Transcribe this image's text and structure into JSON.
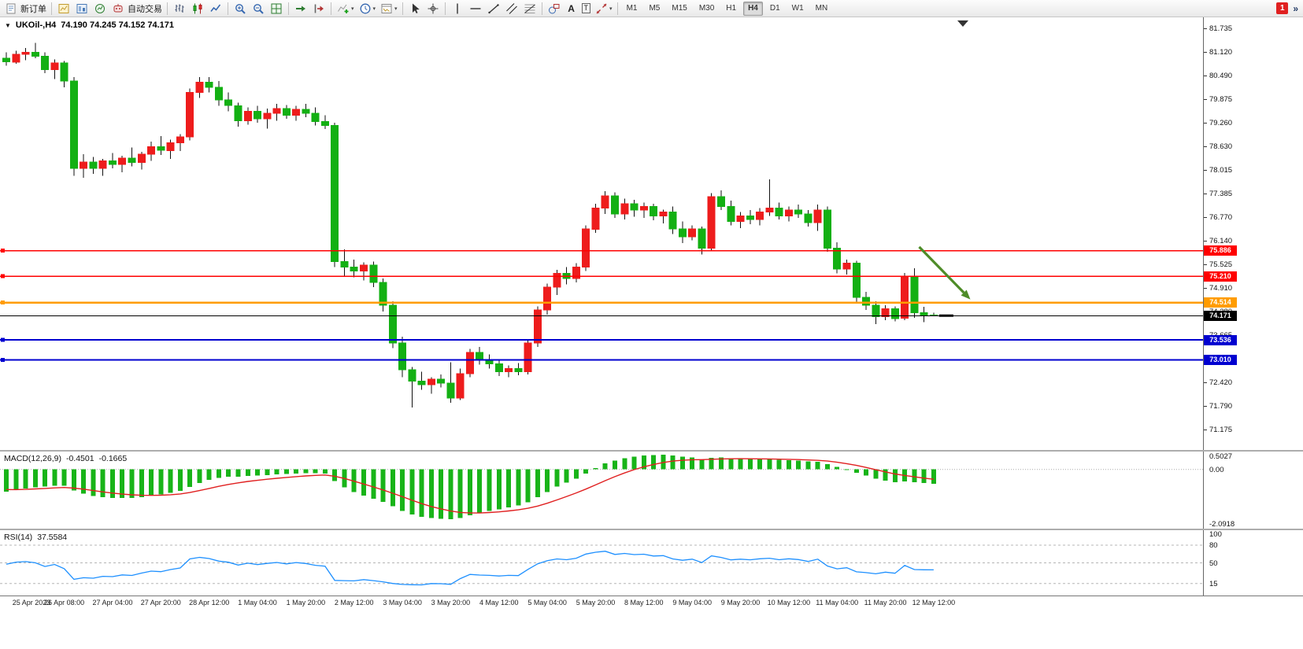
{
  "toolbar": {
    "new_order_label": "新订单",
    "auto_trading_label": "自动交易",
    "timeframes": [
      "M1",
      "M5",
      "M15",
      "M30",
      "H1",
      "H4",
      "D1",
      "W1",
      "MN"
    ],
    "active_timeframe": "H4",
    "notification_count": "1",
    "overflow_glyph": "»",
    "icons": [
      "new-order",
      "new-chart",
      "profiles",
      "market-watch",
      "auto-trading",
      "bar-chart",
      "candlestick",
      "line-chart",
      "zoom-in",
      "zoom-out",
      "tile-windows",
      "auto-scroll",
      "chart-shift",
      "indicators",
      "periods",
      "templates",
      "cursor",
      "crosshair",
      "vertical-line",
      "horizontal-line",
      "trendline",
      "channel",
      "fibonacci",
      "shapes",
      "text",
      "text-label",
      "arrows"
    ]
  },
  "chart": {
    "title_symbol": "UKOil-,H4",
    "title_ohlc": "74.190 74.245 74.152 74.171"
  },
  "chart_data": [
    {
      "type": "candlestick",
      "title": "UKOil-,H4",
      "up_color": "#ee1c1c",
      "down_color": "#13b013",
      "wick_color": "#111111",
      "y_axis_labels": [
        "81.735",
        "81.120",
        "80.490",
        "79.875",
        "79.260",
        "78.630",
        "78.015",
        "77.385",
        "76.770",
        "76.140",
        "75.525",
        "74.910",
        "74.280",
        "73.665",
        "73.035",
        "72.420",
        "71.790",
        "71.175"
      ],
      "x_labels": [
        "25 Apr 2023",
        "26 Apr 08:00",
        "27 Apr 04:00",
        "27 Apr 20:00",
        "28 Apr 12:00",
        "1 May 04:00",
        "1 May 20:00",
        "2 May 12:00",
        "3 May 04:00",
        "3 May 20:00",
        "4 May 12:00",
        "5 May 04:00",
        "5 May 20:00",
        "8 May 12:00",
        "9 May 04:00",
        "9 May 20:00",
        "10 May 12:00",
        "11 May 04:00",
        "11 May 20:00",
        "12 May 12:00"
      ],
      "candles": [
        [
          80.95,
          81.1,
          80.75,
          80.85
        ],
        [
          80.85,
          81.15,
          80.8,
          81.05
        ],
        [
          81.05,
          81.22,
          80.9,
          81.1
        ],
        [
          81.1,
          81.35,
          80.95,
          81.0
        ],
        [
          81.0,
          81.1,
          80.55,
          80.65
        ],
        [
          80.65,
          80.92,
          80.4,
          80.82
        ],
        [
          80.82,
          80.88,
          80.18,
          80.35
        ],
        [
          80.35,
          80.45,
          77.85,
          78.05
        ],
        [
          78.05,
          78.42,
          77.8,
          78.22
        ],
        [
          78.22,
          78.35,
          77.9,
          78.05
        ],
        [
          78.05,
          78.3,
          77.85,
          78.25
        ],
        [
          78.25,
          78.45,
          78.05,
          78.15
        ],
        [
          78.15,
          78.38,
          77.95,
          78.32
        ],
        [
          78.32,
          78.6,
          78.1,
          78.2
        ],
        [
          78.2,
          78.48,
          78.02,
          78.42
        ],
        [
          78.42,
          78.75,
          78.25,
          78.62
        ],
        [
          78.62,
          78.9,
          78.4,
          78.52
        ],
        [
          78.52,
          78.8,
          78.3,
          78.72
        ],
        [
          78.72,
          78.95,
          78.5,
          78.88
        ],
        [
          78.88,
          80.15,
          78.78,
          80.05
        ],
        [
          80.05,
          80.45,
          79.9,
          80.32
        ],
        [
          80.32,
          80.45,
          80.05,
          80.18
        ],
        [
          80.18,
          80.35,
          79.7,
          79.85
        ],
        [
          79.85,
          80.05,
          79.55,
          79.7
        ],
        [
          79.7,
          79.78,
          79.15,
          79.3
        ],
        [
          79.3,
          79.65,
          79.2,
          79.55
        ],
        [
          79.55,
          79.7,
          79.25,
          79.35
        ],
        [
          79.35,
          79.62,
          79.1,
          79.5
        ],
        [
          79.5,
          79.75,
          79.3,
          79.62
        ],
        [
          79.62,
          79.72,
          79.35,
          79.45
        ],
        [
          79.45,
          79.7,
          79.3,
          79.6
        ],
        [
          79.6,
          79.75,
          79.4,
          79.5
        ],
        [
          79.5,
          79.65,
          79.18,
          79.28
        ],
        [
          79.28,
          79.45,
          79.08,
          79.18
        ],
        [
          79.18,
          79.25,
          75.45,
          75.6
        ],
        [
          75.6,
          75.92,
          75.22,
          75.45
        ],
        [
          75.45,
          75.65,
          75.18,
          75.35
        ],
        [
          75.35,
          75.58,
          75.1,
          75.5
        ],
        [
          75.5,
          75.6,
          74.92,
          75.05
        ],
        [
          75.05,
          75.15,
          74.28,
          74.45
        ],
        [
          74.45,
          74.55,
          73.32,
          73.45
        ],
        [
          73.45,
          73.62,
          72.55,
          72.75
        ],
        [
          72.75,
          72.82,
          71.75,
          72.45
        ],
        [
          72.45,
          72.7,
          72.22,
          72.35
        ],
        [
          72.35,
          72.55,
          72.12,
          72.5
        ],
        [
          72.5,
          72.62,
          72.28,
          72.4
        ],
        [
          72.4,
          72.95,
          71.88,
          72.0
        ],
        [
          72.0,
          72.78,
          71.95,
          72.65
        ],
        [
          72.65,
          73.3,
          72.55,
          73.2
        ],
        [
          73.2,
          73.35,
          72.88,
          73.0
        ],
        [
          73.0,
          73.15,
          72.78,
          72.9
        ],
        [
          72.9,
          73.0,
          72.58,
          72.7
        ],
        [
          72.7,
          72.86,
          72.55,
          72.78
        ],
        [
          72.78,
          72.92,
          72.6,
          72.7
        ],
        [
          72.7,
          73.55,
          72.62,
          73.45
        ],
        [
          73.45,
          74.42,
          73.35,
          74.32
        ],
        [
          74.32,
          75.02,
          74.2,
          74.92
        ],
        [
          74.92,
          75.38,
          74.72,
          75.28
        ],
        [
          75.28,
          75.45,
          75.0,
          75.15
        ],
        [
          75.15,
          75.55,
          75.05,
          75.45
        ],
        [
          75.45,
          76.55,
          75.35,
          76.45
        ],
        [
          76.45,
          77.12,
          76.35,
          77.0
        ],
        [
          77.0,
          77.45,
          76.85,
          77.32
        ],
        [
          77.32,
          77.42,
          76.75,
          76.85
        ],
        [
          76.85,
          77.25,
          76.7,
          77.12
        ],
        [
          77.12,
          77.22,
          76.78,
          76.95
        ],
        [
          76.95,
          77.15,
          76.75,
          77.05
        ],
        [
          77.05,
          77.12,
          76.68,
          76.8
        ],
        [
          76.8,
          76.96,
          76.6,
          76.9
        ],
        [
          76.9,
          77.05,
          76.32,
          76.45
        ],
        [
          76.45,
          76.65,
          76.08,
          76.25
        ],
        [
          76.25,
          76.55,
          76.15,
          76.45
        ],
        [
          76.45,
          76.52,
          75.78,
          75.95
        ],
        [
          75.95,
          77.4,
          75.88,
          77.3
        ],
        [
          77.3,
          77.47,
          76.95,
          77.05
        ],
        [
          77.05,
          77.2,
          76.55,
          76.65
        ],
        [
          76.65,
          76.9,
          76.48,
          76.8
        ],
        [
          76.8,
          76.95,
          76.58,
          76.7
        ],
        [
          76.7,
          77.0,
          76.55,
          76.9
        ],
        [
          76.9,
          77.76,
          76.8,
          77.0
        ],
        [
          77.0,
          77.15,
          76.7,
          76.8
        ],
        [
          76.8,
          77.05,
          76.65,
          76.95
        ],
        [
          76.95,
          77.1,
          76.75,
          76.85
        ],
        [
          76.85,
          76.95,
          76.52,
          76.62
        ],
        [
          76.62,
          77.1,
          76.4,
          76.95
        ],
        [
          76.95,
          77.05,
          75.85,
          75.95
        ],
        [
          75.95,
          76.1,
          75.28,
          75.4
        ],
        [
          75.4,
          75.65,
          75.25,
          75.55
        ],
        [
          75.55,
          75.62,
          74.52,
          74.65
        ],
        [
          74.65,
          74.8,
          74.32,
          74.45
        ],
        [
          74.45,
          74.55,
          73.95,
          74.15
        ],
        [
          74.15,
          74.45,
          74.05,
          74.35
        ],
        [
          74.35,
          74.42,
          74.02,
          74.1
        ],
        [
          74.1,
          75.3,
          74.05,
          75.2
        ],
        [
          75.2,
          75.42,
          74.12,
          74.25
        ],
        [
          74.25,
          74.4,
          74.0,
          74.19
        ],
        [
          74.19,
          74.245,
          74.152,
          74.171
        ]
      ],
      "levels": [
        {
          "value": 75.886,
          "color": "#ff0000",
          "width": 1.5
        },
        {
          "value": 75.21,
          "color": "#ff0000",
          "width": 1.5
        },
        {
          "value": 74.514,
          "color": "#ff9c00",
          "width": 2.5
        },
        {
          "value": 73.536,
          "color": "#0000d0",
          "width": 2
        },
        {
          "value": 73.01,
          "color": "#0000d0",
          "width": 2
        }
      ],
      "current_price": {
        "value": 74.171,
        "color": "#000000"
      },
      "annotation": {
        "type": "arrow",
        "from_index": 94.5,
        "from_price": 75.98,
        "to_index": 99.8,
        "to_price": 74.6,
        "color": "#4e8c28"
      }
    },
    {
      "type": "bar",
      "label": "MACD(12,26,9)",
      "main_value": "-0.4501",
      "signal_value": "-0.1665",
      "axis_labels": [
        "0.5027",
        "0.00",
        "-2.0918"
      ],
      "range": [
        -2.0918,
        0.5027
      ],
      "histogram_color": "#18b418",
      "signal_color": "#e02020"
    },
    {
      "type": "line",
      "label": "RSI(14)",
      "value": "37.5584",
      "axis_labels": [
        "100",
        "80",
        "50",
        "15"
      ],
      "levels": [
        80,
        50,
        15
      ],
      "range": [
        0,
        100
      ],
      "line_color": "#1e90ff"
    }
  ]
}
